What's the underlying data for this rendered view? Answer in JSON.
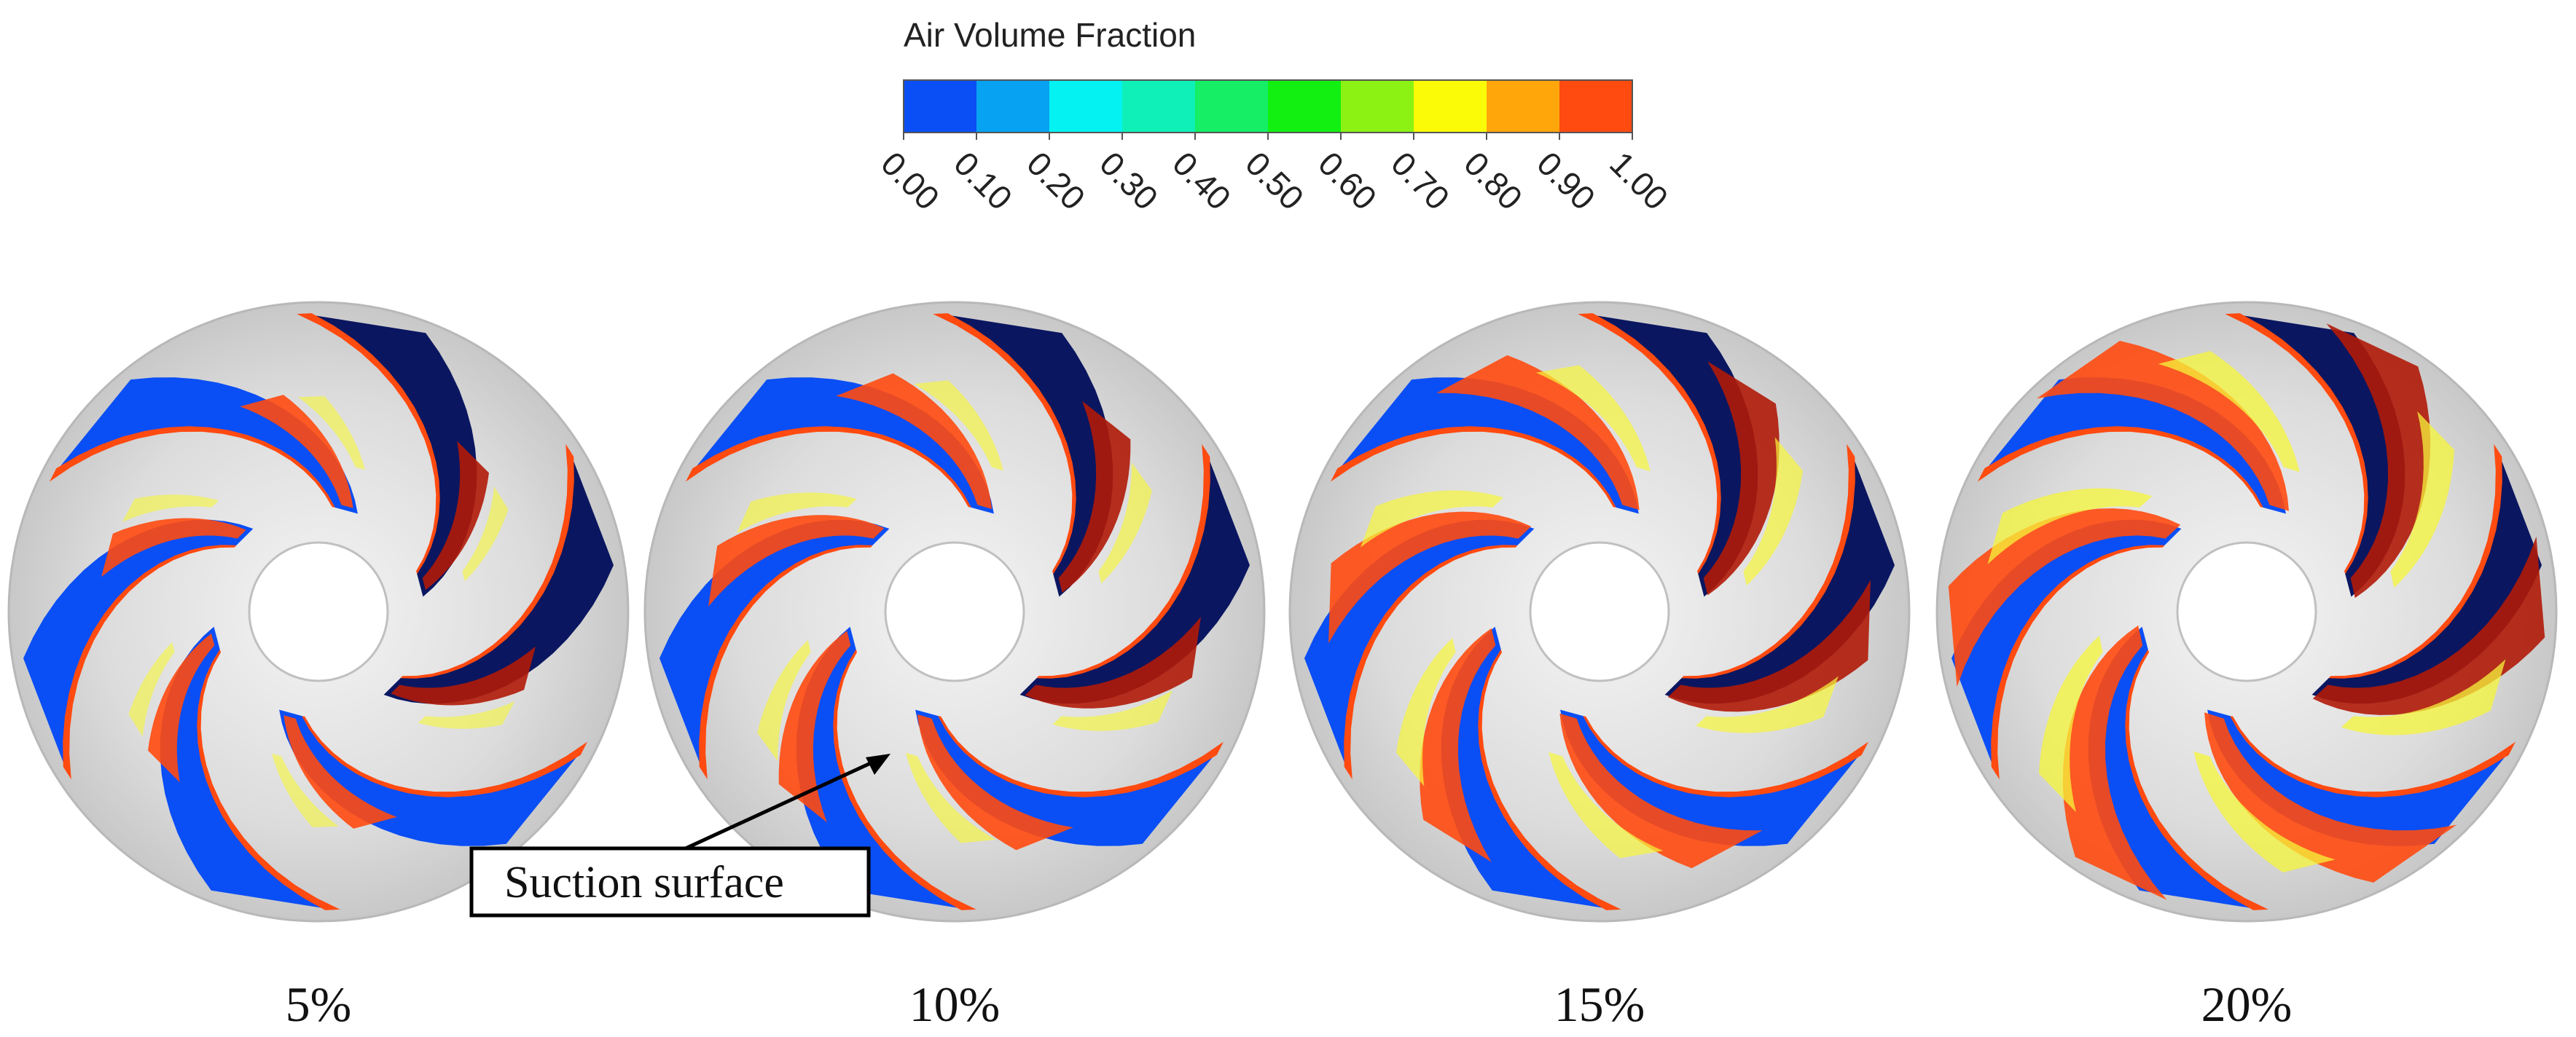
{
  "legend": {
    "title": "Air Volume Fraction",
    "ticks": [
      "0.00",
      "0.10",
      "0.20",
      "0.30",
      "0.40",
      "0.50",
      "0.60",
      "0.70",
      "0.80",
      "0.90",
      "1.00"
    ],
    "colors": [
      "#0a4ef5",
      "#08a2f2",
      "#04f2f2",
      "#0ff0b8",
      "#15ee65",
      "#12f012",
      "#8cf214",
      "#fbfb08",
      "#ffa60b",
      "#ff4a10"
    ]
  },
  "impellers": [
    {
      "label": "5%",
      "level": 0.05
    },
    {
      "label": "10%",
      "level": 0.1
    },
    {
      "label": "15%",
      "level": 0.15
    },
    {
      "label": "20%",
      "level": 0.2
    }
  ],
  "annotation": {
    "text": "Suction surface"
  },
  "colors": {
    "disk": "#d6d6d6",
    "hub": "#ffffff",
    "low": "#0a4ef5",
    "high": "#ff4a10",
    "dark": "#0a1660",
    "darkred": "#b01a08"
  }
}
